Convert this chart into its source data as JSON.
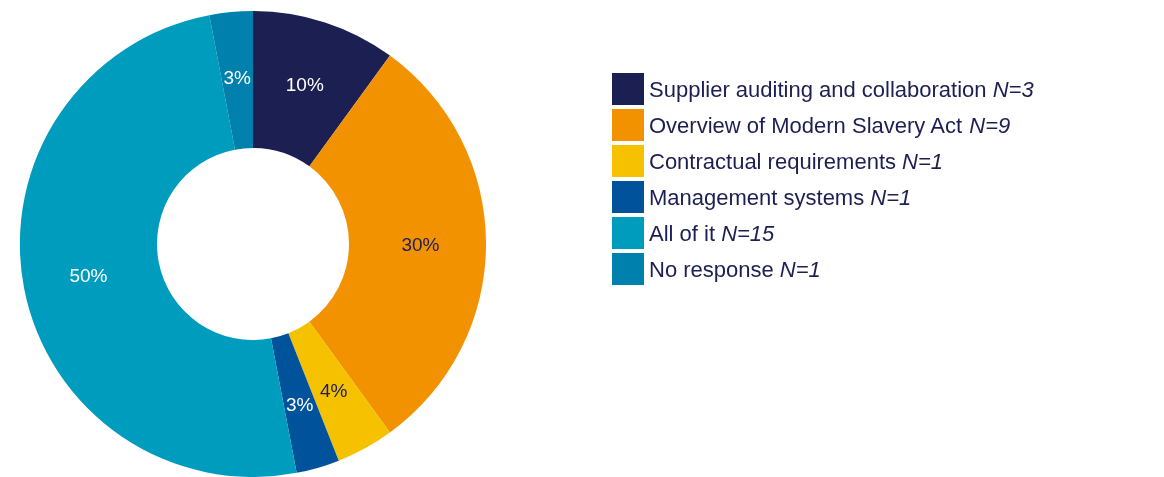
{
  "chart_data": {
    "type": "donut",
    "categories": [
      "Supplier auditing and collaboration N=3",
      "Overview of Modern Slavery Act N=9",
      "Contractual requirements N=1",
      "Management systems N=1",
      "All of it N=15",
      "No response N=1"
    ],
    "values": [
      10,
      30,
      4,
      3,
      50,
      3
    ],
    "value_labels": [
      "10%",
      "30%",
      "4%",
      "3%",
      "50%",
      "3%"
    ],
    "colors": [
      "#1c1f52",
      "#f39200",
      "#f6c200",
      "#00539b",
      "#009cbd",
      "#0080ad"
    ],
    "legend": "right"
  }
}
